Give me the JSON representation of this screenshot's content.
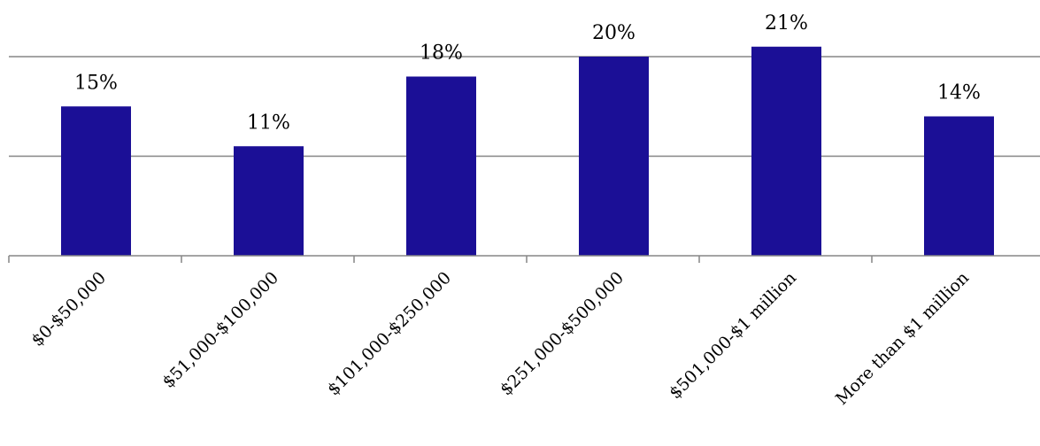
{
  "chart_data": {
    "type": "bar",
    "title": "",
    "xlabel": "",
    "ylabel": "",
    "categories": [
      "$0-$50,000",
      "$51,000-$100,000",
      "$101,000-$250,000",
      "$251,000-$500,000",
      "$501,000-$1 million",
      "More than $1 million"
    ],
    "values": [
      15,
      11,
      18,
      20,
      21,
      14
    ],
    "data_labels": [
      "15%",
      "11%",
      "18%",
      "20%",
      "21%",
      "14%"
    ],
    "value_unit": "%",
    "ylim": [
      0,
      20
    ],
    "gridlines": true,
    "y_tick_labels_shown": false,
    "legend": "none",
    "bar_color": "#1b0f96",
    "grid_color": "#868686"
  }
}
